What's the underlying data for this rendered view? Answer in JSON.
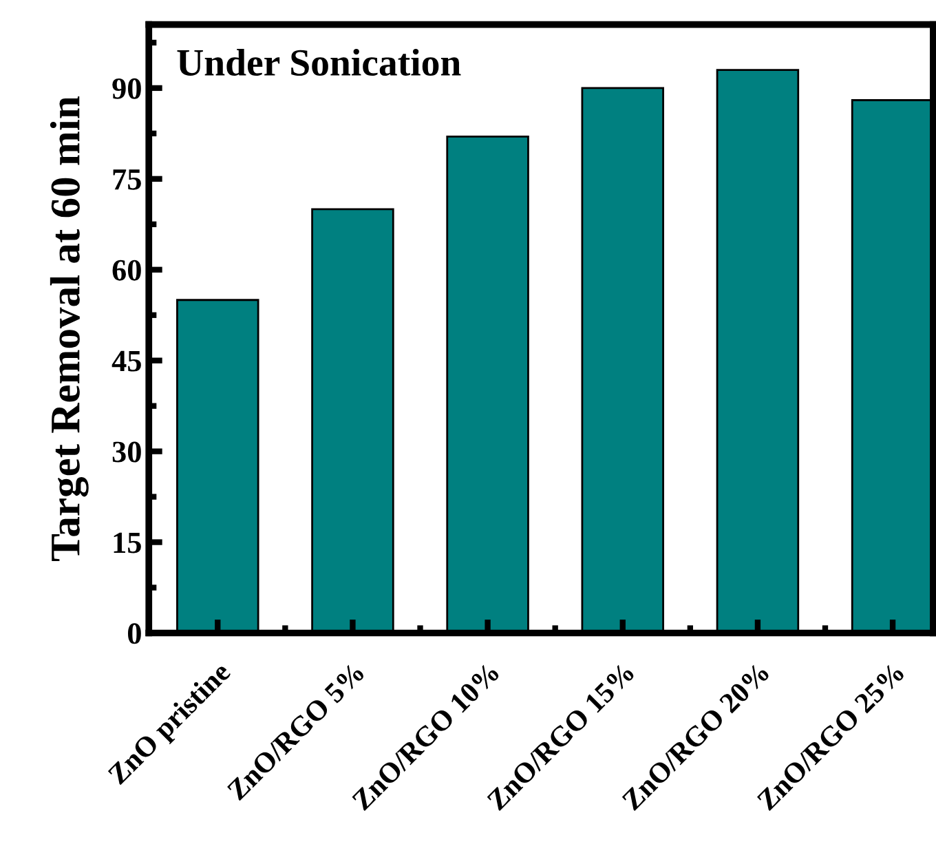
{
  "chart_data": {
    "type": "bar",
    "ylabel": "Target Removal at 60 min",
    "annotations": [
      "Under Sonication"
    ],
    "categories": [
      "ZnO pristine",
      "ZnO/RGO 5%",
      "ZnO/RGO 10%",
      "ZnO/RGO 15%",
      "ZnO/RGO 20%",
      "ZnO/RGO 25%"
    ],
    "values": [
      55,
      70,
      82,
      90,
      93,
      88
    ],
    "color": "#008080",
    "ylim": [
      0,
      100.5
    ],
    "yticks": [
      0,
      15,
      30,
      45,
      60,
      75,
      90
    ],
    "grid": false,
    "legend": false
  }
}
